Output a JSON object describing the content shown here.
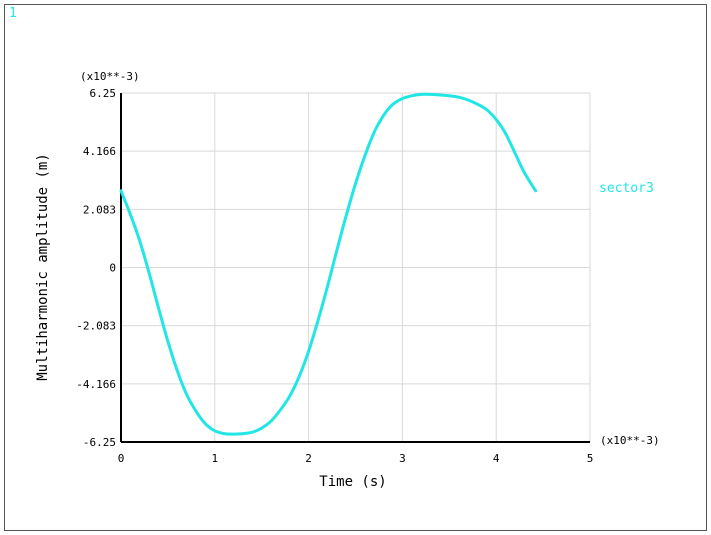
{
  "window": {
    "number_label": "1"
  },
  "colors": {
    "series": "#22e6e6",
    "grid": "#d9d9d9",
    "axis": "#000000",
    "frame": "#555555"
  },
  "chart_data": {
    "type": "line",
    "xlabel": "Time (s)",
    "ylabel": "Multiharmonic amplitude (m)",
    "x_multiplier_label": "(x10**-3)",
    "y_multiplier_label": "(x10**-3)",
    "xlim": [
      0,
      5
    ],
    "ylim": [
      -6.25,
      6.25
    ],
    "x_ticks": [
      "0",
      "1",
      "2",
      "3",
      "4",
      "5"
    ],
    "y_ticks": [
      "6.25",
      "4.166",
      "2.083",
      "0",
      "-2.083",
      "-4.166",
      "-6.25"
    ],
    "grid": true,
    "legend_position": "right",
    "series": [
      {
        "name": "sector3",
        "x": [
          0,
          0.1,
          0.2,
          0.3,
          0.4,
          0.5,
          0.6,
          0.7,
          0.8,
          0.9,
          1.0,
          1.1,
          1.2,
          1.3,
          1.4,
          1.5,
          1.6,
          1.7,
          1.8,
          1.9,
          2.0,
          2.1,
          2.2,
          2.3,
          2.4,
          2.5,
          2.6,
          2.7,
          2.8,
          2.9,
          3.0,
          3.1,
          3.2,
          3.3,
          3.4,
          3.5,
          3.6,
          3.7,
          3.8,
          3.9,
          4.0,
          4.1,
          4.2,
          4.3,
          4.42
        ],
        "y": [
          2.75,
          1.9,
          0.95,
          -0.2,
          -1.45,
          -2.65,
          -3.7,
          -4.55,
          -5.15,
          -5.6,
          -5.85,
          -5.95,
          -5.97,
          -5.95,
          -5.9,
          -5.75,
          -5.5,
          -5.1,
          -4.6,
          -3.9,
          -3.0,
          -1.9,
          -0.7,
          0.6,
          1.85,
          3.0,
          4.0,
          4.85,
          5.45,
          5.85,
          6.05,
          6.15,
          6.2,
          6.2,
          6.18,
          6.15,
          6.1,
          6.0,
          5.85,
          5.65,
          5.3,
          4.8,
          4.1,
          3.4,
          2.75
        ]
      }
    ]
  }
}
